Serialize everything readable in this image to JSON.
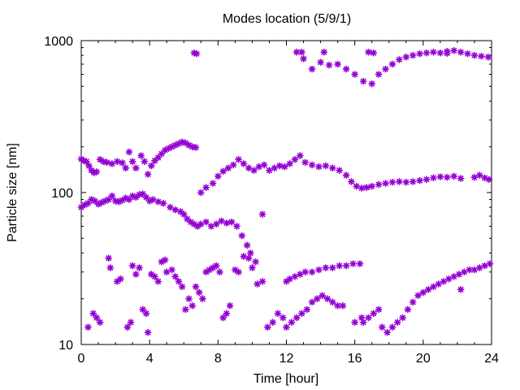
{
  "chart_data": {
    "type": "scatter",
    "title": "Modes location (5/9/1)",
    "xlabel": "Time [hour]",
    "ylabel": "Particle size [nm]",
    "xlim": [
      0,
      24
    ],
    "ylim": [
      10,
      1000
    ],
    "yscale": "log",
    "grid": false,
    "marker": "asterisk",
    "color": "#9400d3",
    "xticks": [
      0,
      4,
      8,
      12,
      16,
      20,
      24
    ],
    "xtick_labels": [
      "0",
      "4",
      "8",
      "12",
      "16",
      "20",
      "24"
    ],
    "yticks": [
      10,
      100,
      1000
    ],
    "ytick_labels": [
      "10",
      "100",
      "1000"
    ],
    "series": [
      {
        "points": [
          [
            0.0,
            166
          ],
          [
            0.15,
            162
          ],
          [
            0.3,
            160
          ],
          [
            0.45,
            150
          ],
          [
            0.6,
            140
          ],
          [
            0.75,
            135
          ],
          [
            0.9,
            137
          ],
          [
            1.1,
            165
          ],
          [
            1.3,
            160
          ],
          [
            1.5,
            158
          ],
          [
            1.8,
            155
          ],
          [
            2.1,
            160
          ],
          [
            2.4,
            157
          ],
          [
            2.6,
            145
          ],
          [
            2.8,
            185
          ],
          [
            3.0,
            160
          ],
          [
            3.2,
            145
          ],
          [
            3.5,
            175
          ],
          [
            3.7,
            160
          ],
          [
            3.9,
            132
          ],
          [
            4.1,
            150
          ],
          [
            4.3,
            162
          ],
          [
            4.5,
            170
          ],
          [
            4.7,
            180
          ],
          [
            4.9,
            190
          ],
          [
            5.1,
            195
          ],
          [
            5.3,
            200
          ],
          [
            5.5,
            205
          ],
          [
            5.7,
            210
          ],
          [
            5.9,
            215
          ],
          [
            6.1,
            212
          ],
          [
            6.3,
            205
          ],
          [
            6.5,
            200
          ],
          [
            6.7,
            198
          ],
          [
            7.0,
            100
          ],
          [
            7.3,
            108
          ],
          [
            7.7,
            115
          ],
          [
            8.0,
            128
          ],
          [
            8.3,
            138
          ],
          [
            8.6,
            145
          ],
          [
            8.9,
            152
          ],
          [
            9.2,
            165
          ],
          [
            9.5,
            155
          ],
          [
            9.8,
            145
          ],
          [
            10.1,
            140
          ],
          [
            10.4,
            148
          ],
          [
            10.7,
            152
          ],
          [
            11.0,
            140
          ],
          [
            11.3,
            145
          ],
          [
            11.6,
            150
          ],
          [
            11.9,
            148
          ],
          [
            12.2,
            155
          ],
          [
            12.5,
            165
          ],
          [
            12.8,
            175
          ],
          [
            13.1,
            158
          ],
          [
            13.5,
            152
          ],
          [
            13.9,
            148
          ],
          [
            14.3,
            150
          ],
          [
            14.7,
            145
          ],
          [
            15.1,
            140
          ],
          [
            15.5,
            130
          ],
          [
            15.8,
            118
          ],
          [
            16.1,
            110
          ],
          [
            16.4,
            107
          ],
          [
            16.7,
            108
          ],
          [
            17.0,
            110
          ],
          [
            17.4,
            113
          ],
          [
            17.8,
            115
          ],
          [
            18.2,
            117
          ],
          [
            18.6,
            118
          ],
          [
            19.0,
            117
          ],
          [
            19.4,
            118
          ],
          [
            19.8,
            120
          ],
          [
            20.2,
            122
          ],
          [
            20.6,
            125
          ],
          [
            21.0,
            127
          ],
          [
            21.4,
            126
          ],
          [
            21.8,
            128
          ],
          [
            22.2,
            124
          ],
          [
            23.0,
            126
          ],
          [
            23.3,
            130
          ],
          [
            23.6,
            125
          ],
          [
            23.85,
            122
          ]
        ]
      },
      {
        "points": [
          [
            0.0,
            80
          ],
          [
            0.2,
            83
          ],
          [
            0.4,
            85
          ],
          [
            0.6,
            90
          ],
          [
            0.8,
            88
          ],
          [
            1.0,
            84
          ],
          [
            1.2,
            86
          ],
          [
            1.4,
            88
          ],
          [
            1.6,
            90
          ],
          [
            1.8,
            95
          ],
          [
            2.0,
            88
          ],
          [
            2.2,
            87
          ],
          [
            2.4,
            89
          ],
          [
            2.6,
            92
          ],
          [
            2.8,
            90
          ],
          [
            3.0,
            95
          ],
          [
            3.2,
            93
          ],
          [
            3.4,
            97
          ],
          [
            3.6,
            98
          ],
          [
            3.8,
            93
          ],
          [
            4.0,
            88
          ],
          [
            4.2,
            90
          ],
          [
            4.5,
            87
          ],
          [
            4.8,
            85
          ],
          [
            5.2,
            80
          ],
          [
            5.5,
            77
          ],
          [
            5.8,
            75
          ],
          [
            6.0,
            72
          ],
          [
            6.2,
            67
          ],
          [
            6.4,
            64
          ],
          [
            6.6,
            62
          ],
          [
            6.8,
            60
          ],
          [
            7.0,
            62
          ],
          [
            7.3,
            64
          ],
          [
            7.6,
            60
          ],
          [
            7.9,
            62
          ],
          [
            8.2,
            65
          ],
          [
            8.5,
            63
          ],
          [
            8.8,
            64
          ],
          [
            9.1,
            60
          ],
          [
            9.4,
            52
          ],
          [
            9.7,
            45
          ],
          [
            9.9,
            40
          ],
          [
            10.2,
            35
          ],
          [
            10.6,
            72
          ],
          [
            13.0,
            760
          ],
          [
            13.5,
            650
          ],
          [
            14.0,
            720
          ],
          [
            14.5,
            690
          ],
          [
            15.0,
            700
          ],
          [
            15.5,
            650
          ],
          [
            16.0,
            600
          ],
          [
            16.5,
            540
          ],
          [
            17.0,
            520
          ],
          [
            17.4,
            600
          ],
          [
            17.8,
            650
          ],
          [
            18.2,
            700
          ],
          [
            18.6,
            750
          ],
          [
            19.0,
            780
          ],
          [
            19.4,
            800
          ],
          [
            19.8,
            820
          ],
          [
            20.2,
            830
          ],
          [
            20.6,
            840
          ],
          [
            21.0,
            830
          ],
          [
            21.4,
            850
          ],
          [
            21.8,
            860
          ],
          [
            22.2,
            840
          ],
          [
            22.6,
            820
          ],
          [
            23.0,
            800
          ],
          [
            23.4,
            790
          ],
          [
            23.8,
            780
          ]
        ]
      },
      {
        "points": [
          [
            6.6,
            830
          ],
          [
            6.75,
            820
          ],
          [
            12.6,
            840
          ],
          [
            12.9,
            840
          ],
          [
            14.2,
            840
          ],
          [
            16.8,
            840
          ],
          [
            17.1,
            830
          ],
          [
            21.4,
            825
          ]
        ]
      },
      {
        "points": [
          [
            0.4,
            13
          ],
          [
            0.7,
            16
          ],
          [
            0.9,
            15
          ],
          [
            1.1,
            14
          ],
          [
            1.6,
            37
          ],
          [
            1.7,
            32
          ],
          [
            2.1,
            26
          ],
          [
            2.3,
            27
          ],
          [
            2.7,
            13
          ],
          [
            2.9,
            14
          ],
          [
            3.0,
            33
          ],
          [
            3.2,
            29
          ],
          [
            3.4,
            32
          ],
          [
            3.6,
            17
          ],
          [
            3.8,
            16
          ],
          [
            3.9,
            12
          ],
          [
            4.1,
            29
          ],
          [
            4.3,
            28
          ],
          [
            4.5,
            26
          ],
          [
            4.7,
            35
          ],
          [
            4.9,
            36
          ],
          [
            5.0,
            30
          ],
          [
            5.3,
            31
          ],
          [
            5.5,
            28
          ],
          [
            5.7,
            26
          ],
          [
            5.9,
            24
          ],
          [
            6.1,
            17
          ],
          [
            6.3,
            20
          ],
          [
            6.5,
            18
          ],
          [
            6.7,
            24
          ],
          [
            6.9,
            22
          ],
          [
            7.1,
            20
          ],
          [
            7.3,
            30
          ],
          [
            7.5,
            31
          ],
          [
            7.7,
            32
          ],
          [
            7.9,
            33
          ],
          [
            8.1,
            30
          ],
          [
            8.3,
            15
          ],
          [
            8.5,
            16
          ],
          [
            8.7,
            18
          ],
          [
            9.0,
            31
          ],
          [
            9.2,
            30
          ],
          [
            9.5,
            38
          ],
          [
            9.8,
            37
          ],
          [
            10.0,
            32
          ],
          [
            10.3,
            25
          ],
          [
            10.6,
            26
          ],
          [
            10.9,
            13
          ],
          [
            11.2,
            14
          ],
          [
            11.5,
            16
          ],
          [
            11.8,
            15
          ],
          [
            12.0,
            26
          ],
          [
            12.2,
            27
          ],
          [
            12.5,
            28
          ],
          [
            12.8,
            29
          ],
          [
            13.1,
            30
          ],
          [
            13.5,
            30
          ],
          [
            13.9,
            31
          ],
          [
            14.3,
            32
          ],
          [
            14.7,
            32
          ],
          [
            15.1,
            33
          ],
          [
            15.5,
            33
          ],
          [
            15.9,
            34
          ],
          [
            16.3,
            34
          ],
          [
            16.5,
            14
          ],
          [
            16.8,
            15
          ],
          [
            17.1,
            16
          ],
          [
            17.4,
            17
          ],
          [
            17.6,
            13
          ],
          [
            17.9,
            12
          ],
          [
            18.2,
            13
          ],
          [
            18.5,
            14
          ],
          [
            18.8,
            15
          ],
          [
            19.1,
            17
          ],
          [
            19.4,
            19
          ],
          [
            19.7,
            21
          ],
          [
            20.0,
            22
          ],
          [
            20.3,
            23
          ],
          [
            20.6,
            24
          ],
          [
            20.9,
            25
          ],
          [
            21.2,
            26
          ],
          [
            21.5,
            27
          ],
          [
            21.8,
            28
          ],
          [
            22.1,
            29
          ],
          [
            22.4,
            30
          ],
          [
            22.7,
            31
          ],
          [
            23.0,
            31
          ],
          [
            23.3,
            32
          ],
          [
            23.6,
            33
          ],
          [
            23.9,
            34
          ],
          [
            22.2,
            23
          ]
        ]
      },
      {
        "points": [
          [
            12.0,
            13
          ],
          [
            12.3,
            14
          ],
          [
            12.6,
            15
          ],
          [
            12.9,
            16
          ],
          [
            13.2,
            17
          ],
          [
            13.5,
            19
          ],
          [
            13.8,
            20
          ],
          [
            14.1,
            21
          ],
          [
            14.4,
            20
          ],
          [
            14.7,
            19
          ],
          [
            15.0,
            18
          ],
          [
            15.3,
            18
          ],
          [
            16.0,
            14
          ],
          [
            16.4,
            15
          ]
        ]
      }
    ]
  }
}
